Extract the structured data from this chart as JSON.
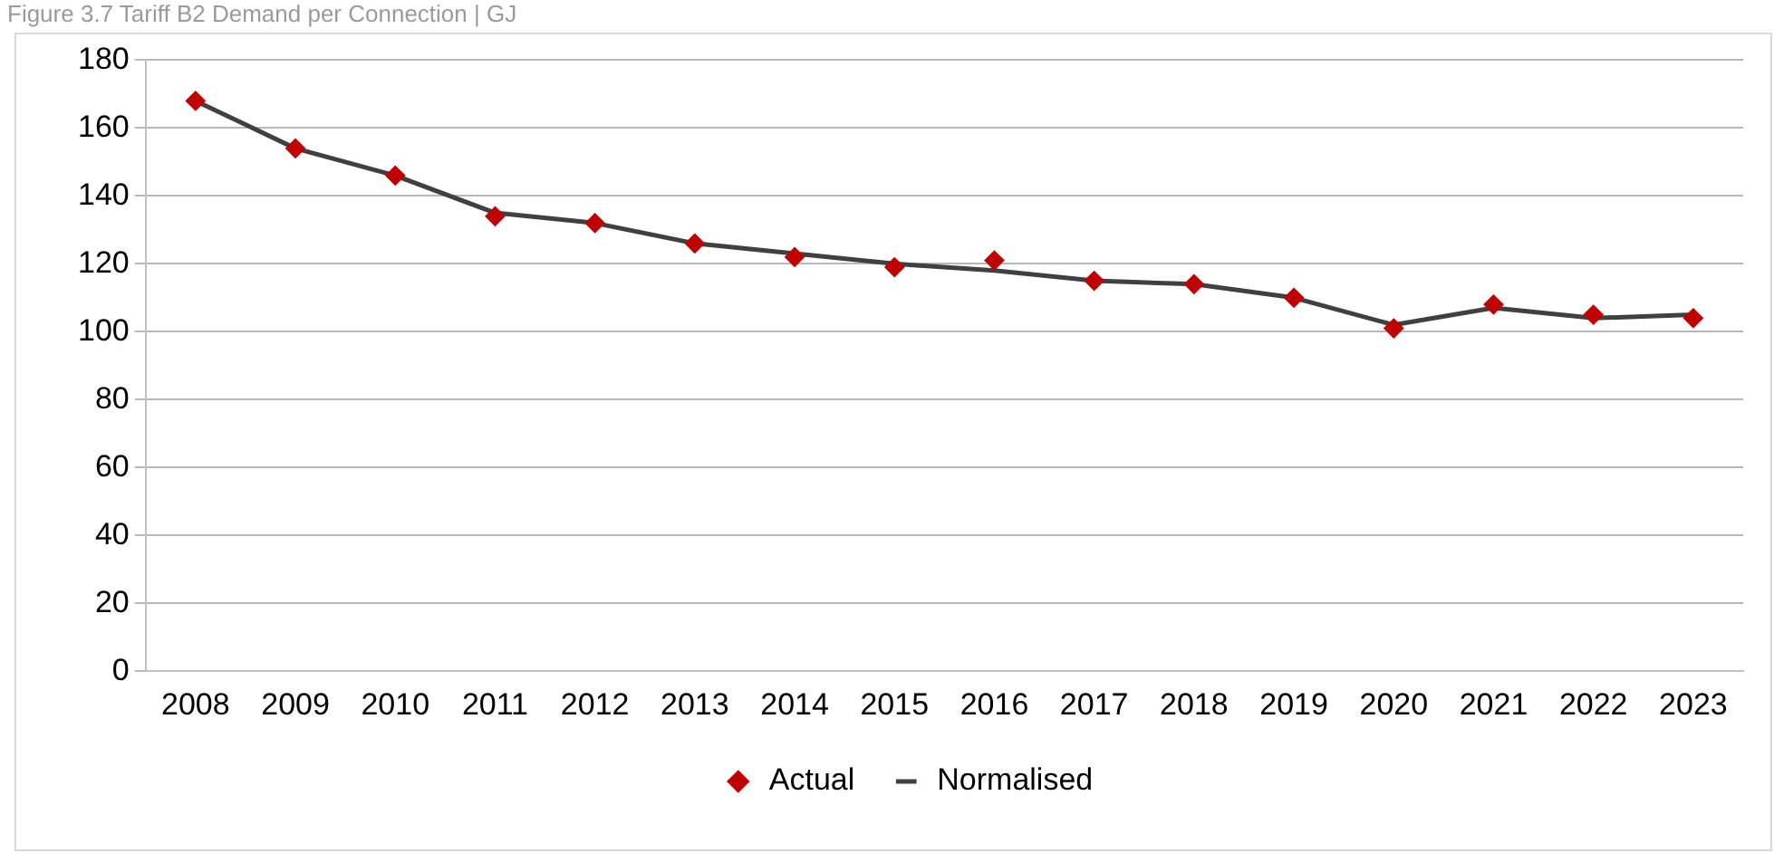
{
  "chart_data": {
    "type": "line",
    "title": "Figure 3.7 Tariff B2 Demand per Connection | GJ",
    "categories": [
      "2008",
      "2009",
      "2010",
      "2011",
      "2012",
      "2013",
      "2014",
      "2015",
      "2016",
      "2017",
      "2018",
      "2019",
      "2020",
      "2021",
      "2022",
      "2023"
    ],
    "series": [
      {
        "name": "Actual",
        "type": "scatter",
        "marker": "diamond",
        "color": "#c00000",
        "values": [
          168,
          154,
          146,
          134,
          132,
          126,
          122,
          119,
          121,
          115,
          114,
          110,
          101,
          108,
          105,
          104
        ]
      },
      {
        "name": "Normalised",
        "marker": "none",
        "line_style": "solid",
        "color": "#404040",
        "values": [
          168,
          154,
          146,
          135,
          132,
          126,
          123,
          120,
          118,
          115,
          114,
          110,
          102,
          107,
          104,
          105
        ]
      }
    ],
    "ylim": [
      0,
      180
    ],
    "yticks": [
      0,
      20,
      40,
      60,
      80,
      100,
      120,
      140,
      160,
      180
    ],
    "grid": "y",
    "legend": "bottom"
  }
}
